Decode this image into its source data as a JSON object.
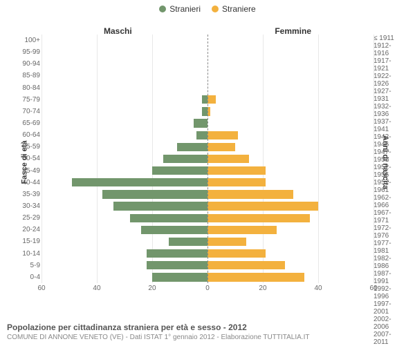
{
  "legend": {
    "male": "Stranieri",
    "female": "Straniere"
  },
  "colors": {
    "male": "#72966c",
    "female": "#f3b13e",
    "grid": "#e8e8e8",
    "center": "#888888",
    "background": "#ffffff"
  },
  "side_titles": {
    "left": "Maschi",
    "right": "Femmine"
  },
  "y_axis_title_left": "Fasce di età",
  "y_axis_title_right": "Anni di nascita",
  "x_axis": {
    "max": 60,
    "ticks": [
      60,
      40,
      20,
      0,
      20,
      40,
      60
    ]
  },
  "age_labels": [
    "100+",
    "95-99",
    "90-94",
    "85-89",
    "80-84",
    "75-79",
    "70-74",
    "65-69",
    "60-64",
    "55-59",
    "50-54",
    "45-49",
    "40-44",
    "35-39",
    "30-34",
    "25-29",
    "20-24",
    "15-19",
    "10-14",
    "5-9",
    "0-4"
  ],
  "birth_labels": [
    "≤ 1911",
    "1912-1916",
    "1917-1921",
    "1922-1926",
    "1927-1931",
    "1932-1936",
    "1937-1941",
    "1942-1946",
    "1947-1951",
    "1952-1956",
    "1957-1961",
    "1962-1966",
    "1967-1971",
    "1972-1976",
    "1977-1981",
    "1982-1986",
    "1987-1991",
    "1992-1996",
    "1997-2001",
    "2002-2006",
    "2007-2011"
  ],
  "male_values": [
    0,
    0,
    0,
    0,
    0,
    2,
    2,
    5,
    4,
    11,
    16,
    20,
    49,
    38,
    34,
    28,
    24,
    14,
    22,
    22,
    20
  ],
  "female_values": [
    0,
    0,
    0,
    0,
    0,
    3,
    1,
    0,
    11,
    10,
    15,
    21,
    21,
    31,
    40,
    37,
    25,
    14,
    21,
    28,
    35
  ],
  "footer": {
    "title": "Popolazione per cittadinanza straniera per età e sesso - 2012",
    "subtitle": "COMUNE DI ANNONE VENETO (VE) - Dati ISTAT 1° gennaio 2012 - Elaborazione TUTTITALIA.IT"
  }
}
